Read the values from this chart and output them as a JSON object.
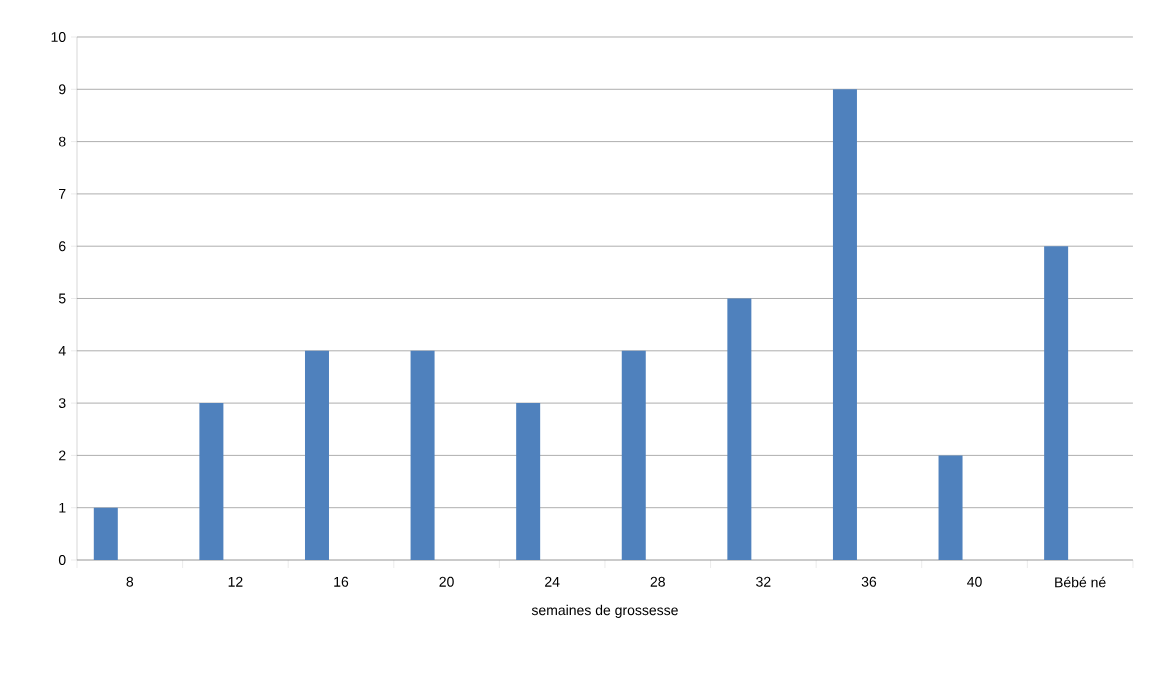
{
  "chart_data": {
    "type": "bar",
    "xlabel": "semaines de grossesse",
    "categories": [
      "8",
      "12",
      "16",
      "20",
      "24",
      "28",
      "32",
      "36",
      "40",
      "Bébé né"
    ],
    "values": [
      1,
      3,
      4,
      4,
      3,
      4,
      5,
      9,
      2,
      6
    ],
    "color": "#4f81bd",
    "ylim": [
      0,
      10
    ],
    "yticks": [
      0,
      1,
      2,
      3,
      4,
      5,
      6,
      7,
      8,
      9,
      10
    ],
    "grid": "y"
  }
}
